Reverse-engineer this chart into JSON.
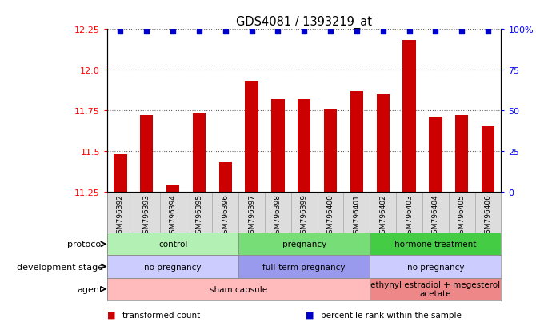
{
  "title": "GDS4081 / 1393219_at",
  "samples": [
    "GSM796392",
    "GSM796393",
    "GSM796394",
    "GSM796395",
    "GSM796396",
    "GSM796397",
    "GSM796398",
    "GSM796399",
    "GSM796400",
    "GSM796401",
    "GSM796402",
    "GSM796403",
    "GSM796404",
    "GSM796405",
    "GSM796406"
  ],
  "bar_values": [
    11.48,
    11.72,
    11.29,
    11.73,
    11.43,
    11.93,
    11.82,
    11.82,
    11.76,
    11.87,
    11.85,
    12.18,
    11.71,
    11.72,
    11.65
  ],
  "percentile_values": [
    100,
    100,
    100,
    100,
    100,
    100,
    100,
    100,
    100,
    100,
    100,
    100,
    100,
    100,
    100
  ],
  "bar_color": "#cc0000",
  "dot_color": "#0000cc",
  "ylim_left": [
    11.25,
    12.25
  ],
  "yticks_left": [
    11.25,
    11.5,
    11.75,
    12.0,
    12.25
  ],
  "yticks_right": [
    0,
    25,
    50,
    75,
    100
  ],
  "ylim_right": [
    0,
    100
  ],
  "protocol_groups": [
    {
      "label": "control",
      "start": 0,
      "end": 4,
      "color": "#b3f0b3"
    },
    {
      "label": "pregnancy",
      "start": 5,
      "end": 9,
      "color": "#77dd77"
    },
    {
      "label": "hormone treatment",
      "start": 10,
      "end": 14,
      "color": "#44cc44"
    }
  ],
  "dev_stage_groups": [
    {
      "label": "no pregnancy",
      "start": 0,
      "end": 4,
      "color": "#ccccff"
    },
    {
      "label": "full-term pregnancy",
      "start": 5,
      "end": 9,
      "color": "#9999ee"
    },
    {
      "label": "no pregnancy",
      "start": 10,
      "end": 14,
      "color": "#ccccff"
    }
  ],
  "agent_groups": [
    {
      "label": "sham capsule",
      "start": 0,
      "end": 9,
      "color": "#ffbbbb"
    },
    {
      "label": "ethynyl estradiol + megesterol\nacetate",
      "start": 10,
      "end": 14,
      "color": "#ee8888"
    }
  ],
  "row_labels": [
    "protocol",
    "development stage",
    "agent"
  ],
  "legend_items": [
    {
      "label": "transformed count",
      "color": "#cc0000"
    },
    {
      "label": "percentile rank within the sample",
      "color": "#0000cc"
    }
  ],
  "sample_bg_color": "#dddddd",
  "chart_bg_color": "#ffffff"
}
